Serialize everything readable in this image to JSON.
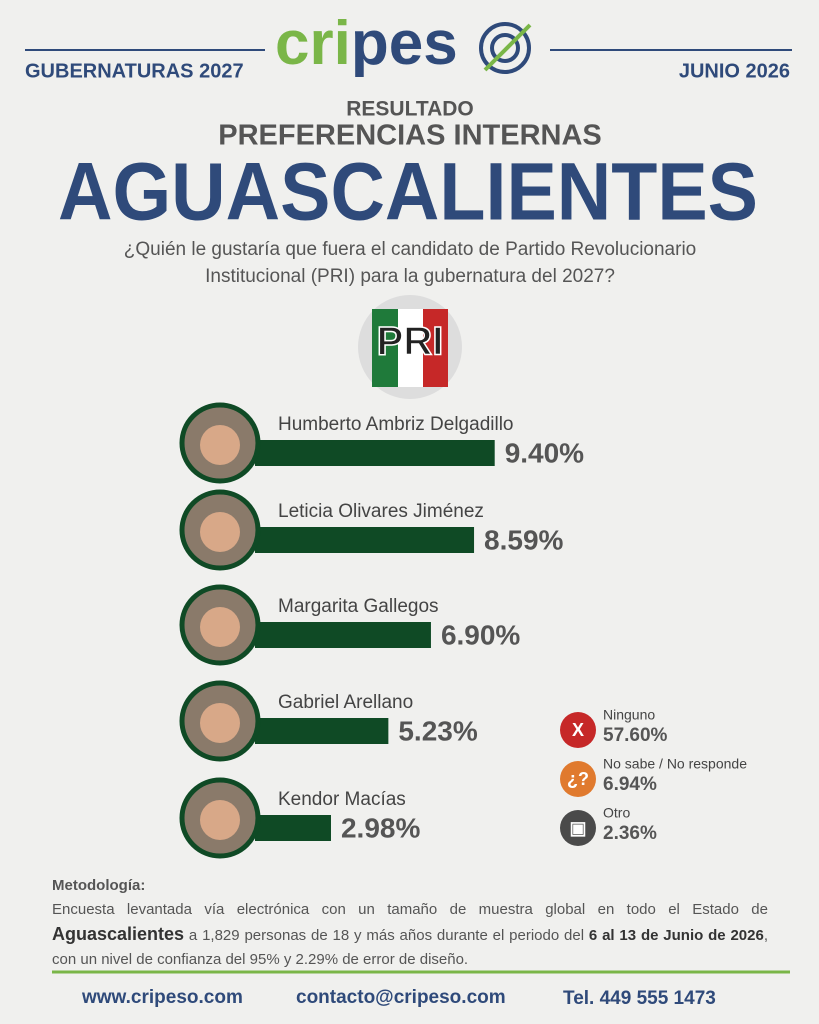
{
  "header": {
    "left": "GUBERNATURAS 2027",
    "right": "JUNIO 2026",
    "logo_parts": [
      "cri",
      "pes"
    ]
  },
  "kicker": "RESULTADO",
  "subtitle": "PREFERENCIAS INTERNAS",
  "title": "AGUASCALIENTES",
  "question": [
    "¿Quién le gustaría que fuera el candidato de Partido Revolucionario",
    "Institucional (PRI) para la gubernatura del 2027?"
  ],
  "party_logo": "PRI",
  "chart_data": {
    "type": "bar",
    "orientation": "horizontal",
    "color": "#0f4a25",
    "categories": [
      "Humberto Ambriz Delgadillo",
      "Leticia Olivares Jiménez",
      "Margarita Gallegos",
      "Gabriel Arellano",
      "Kendor Macías"
    ],
    "values": [
      9.4,
      8.59,
      6.9,
      5.23,
      2.98
    ],
    "value_labels": [
      "9.40%",
      "8.59%",
      "6.90%",
      "5.23%",
      "2.98%"
    ]
  },
  "other_answers": [
    {
      "name": "Ninguno",
      "value_label": "57.60%",
      "color": "#c62828",
      "icon": "X"
    },
    {
      "name": "No sabe / No responde",
      "value_label": "6.94%",
      "color": "#e07a2e",
      "icon": "¿?"
    },
    {
      "name": "Otro",
      "value_label": "2.36%",
      "color": "#4a4a4a",
      "icon": "▣"
    }
  ],
  "methodology": {
    "heading": "Metodología:",
    "segments": [
      {
        "text": "Encuesta levantada vía electrónica con un tamaño de muestra global en todo el Estado de ",
        "bold": false
      },
      {
        "text": "Aguascalientes",
        "bold": true
      },
      {
        "text": " a 1,829 personas de 18 y más años durante el periodo del ",
        "bold": false
      },
      {
        "text": "6 al 13 de Junio de 2026",
        "bold": true
      },
      {
        "text": ", con un nivel de confianza del 95% y 2.29% de error de diseño.",
        "bold": false
      }
    ]
  },
  "footer": [
    "www.cripeso.com",
    "contacto@cripeso.com",
    "Tel. 449 555 1473"
  ]
}
